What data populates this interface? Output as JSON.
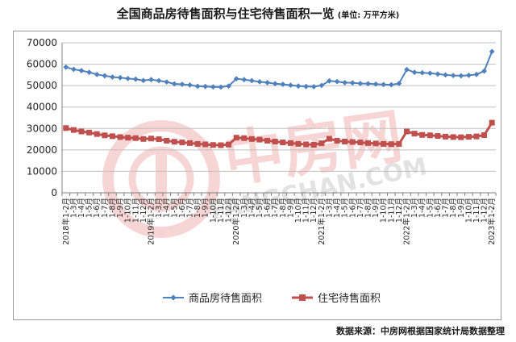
{
  "header": {
    "title": "全国商品房待售面积与住宅待售面积一览",
    "unit": "(单位: 万平方米)"
  },
  "watermark": {
    "brand_cn": "中房网",
    "brand_en": "FANGCHAN.COM"
  },
  "footer": {
    "source": "数据来源：中房网根据国家统计局数据整理"
  },
  "colors": {
    "series_1": "#4f81bd",
    "series_2": "#c0504d",
    "watermark": "#e46a6a"
  },
  "chart_data": {
    "type": "line",
    "title": "全国商品房待售面积与住宅待售面积一览",
    "ylim": [
      0,
      70000
    ],
    "yticks": [
      0,
      10000,
      20000,
      30000,
      40000,
      50000,
      60000,
      70000
    ],
    "grid": true,
    "legend_position": "bottom",
    "categories": [
      "2018年1-2月",
      "1-3月",
      "1-4月",
      "1-5月",
      "1-6月",
      "1-7月",
      "1-8月",
      "1-9月",
      "1-10月",
      "1-11月",
      "1-12月",
      "2019年1-2月",
      "1-3月",
      "1-4月",
      "1-5月",
      "1-6月",
      "1-7月",
      "1-8月",
      "1-9月",
      "1-10月",
      "1-11月",
      "1-12月",
      "2020年1-2月",
      "1-3月",
      "1-4月",
      "1-5月",
      "1-6月",
      "1-7月",
      "1-8月",
      "1-9月",
      "1-10月",
      "1-11月",
      "1-12月",
      "2021年1-2月",
      "1-3月",
      "1-4月",
      "1-5月",
      "1-6月",
      "1-7月",
      "1-8月",
      "1-9月",
      "1-10月",
      "1-11月",
      "1-12月",
      "2022年1-2月",
      "1-3月",
      "1-4月",
      "1-5月",
      "1-6月",
      "1-7月",
      "1-8月",
      "1-9月",
      "1-10月",
      "1-11月",
      "1-12月",
      "2023年1-2月"
    ],
    "series": [
      {
        "name": "商品房待售面积",
        "values": [
          58600,
          57600,
          57000,
          56200,
          55200,
          54600,
          54000,
          53700,
          53300,
          53000,
          52400,
          52800,
          52300,
          51700,
          50800,
          50600,
          50300,
          49700,
          49600,
          49400,
          49300,
          49800,
          53200,
          52800,
          52300,
          51800,
          51400,
          50900,
          50600,
          50200,
          49800,
          49600,
          49500,
          50100,
          52200,
          51900,
          51400,
          51300,
          51000,
          50900,
          50700,
          50500,
          50400,
          51000,
          57500,
          56200,
          56000,
          55800,
          55400,
          55000,
          54700,
          54600,
          54800,
          55200,
          56800,
          65900
        ]
      },
      {
        "name": "住宅待售面积",
        "values": [
          30200,
          29300,
          28600,
          28100,
          27400,
          26800,
          26400,
          26000,
          25700,
          25500,
          25100,
          25300,
          25000,
          24300,
          23800,
          23500,
          23200,
          22800,
          22600,
          22300,
          22200,
          22500,
          25700,
          25500,
          25100,
          24800,
          24300,
          23900,
          23500,
          23200,
          22800,
          22600,
          22400,
          23100,
          25200,
          24300,
          23900,
          23700,
          23500,
          23200,
          23000,
          22800,
          22700,
          22800,
          28600,
          27600,
          27000,
          26800,
          26500,
          26200,
          26000,
          25900,
          26100,
          26300,
          26900,
          32700
        ]
      }
    ]
  }
}
